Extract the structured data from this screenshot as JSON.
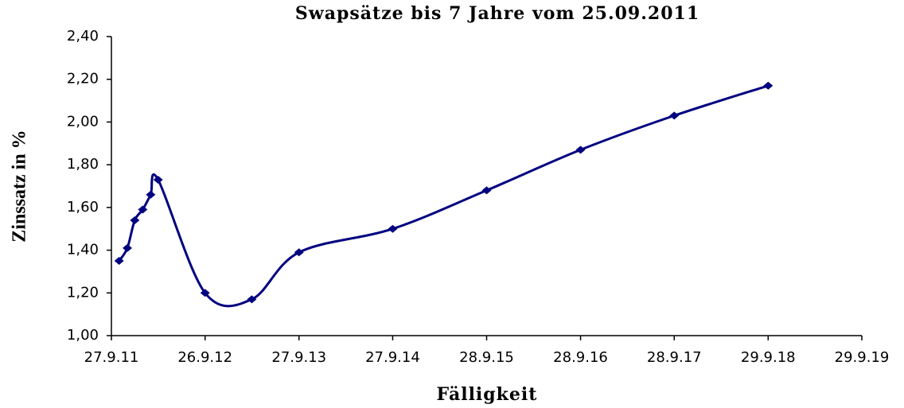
{
  "chart_data": {
    "type": "line",
    "title": "Swapsätze bis 7 Jahre vom 25.09.2011",
    "xlabel": "Fälligkeit",
    "ylabel": "Zinssatz in %",
    "x": [
      "27.10.11",
      "28.11.11",
      "27.12.11",
      "27.1.12",
      "27.2.12",
      "27.3.12",
      "26.9.12",
      "27.3.13",
      "27.9.13",
      "27.9.14",
      "28.9.15",
      "28.9.16",
      "28.9.17",
      "29.9.18"
    ],
    "series": [
      {
        "name": "Swapsätze",
        "color": "#000080",
        "values": [
          1.35,
          1.41,
          1.54,
          1.59,
          1.66,
          1.73,
          1.2,
          1.17,
          1.39,
          1.5,
          1.68,
          1.87,
          2.03,
          2.17
        ]
      }
    ],
    "xlim": [
      "27.9.11",
      "29.9.19"
    ],
    "xticks": [
      "27.9.11",
      "26.9.12",
      "27.9.13",
      "27.9.14",
      "28.9.15",
      "28.9.16",
      "28.9.17",
      "29.9.18",
      "29.9.19"
    ],
    "ylim": [
      1.0,
      2.4
    ],
    "yticks": [
      {
        "value": 1.0,
        "label": "1,00"
      },
      {
        "value": 1.2,
        "label": "1,20"
      },
      {
        "value": 1.4,
        "label": "1,40"
      },
      {
        "value": 1.6,
        "label": "1,60"
      },
      {
        "value": 1.8,
        "label": "1,80"
      },
      {
        "value": 2.0,
        "label": "2,00"
      },
      {
        "value": 2.2,
        "label": "2,20"
      },
      {
        "value": 2.4,
        "label": "2,40"
      }
    ]
  }
}
